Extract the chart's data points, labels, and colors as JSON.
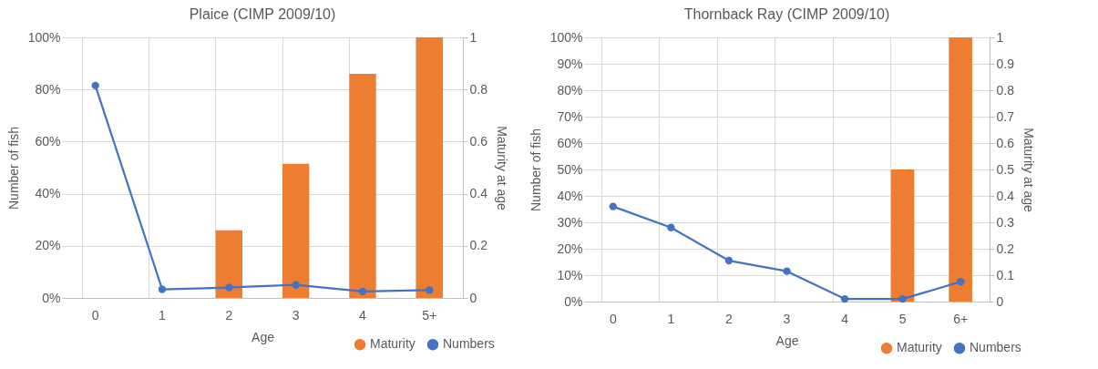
{
  "chart_data": [
    {
      "type": "bar",
      "title": "Plaice (CIMP 2009/10)",
      "xlabel": "Age",
      "ylabel": "Number of fish",
      "y2label": "Maturity at age",
      "categories": [
        "0",
        "1",
        "2",
        "3",
        "4",
        "5+"
      ],
      "ylim": [
        0,
        100
      ],
      "yticks": [
        {
          "value": 0,
          "label": "0%"
        },
        {
          "value": 20,
          "label": "20%"
        },
        {
          "value": 40,
          "label": "40%"
        },
        {
          "value": 60,
          "label": "60%"
        },
        {
          "value": 80,
          "label": "80%"
        },
        {
          "value": 100,
          "label": "100%"
        }
      ],
      "y2lim": [
        0,
        1
      ],
      "y2ticks": [
        0,
        0.2,
        0.4,
        0.6,
        0.8,
        1
      ],
      "grid": true,
      "legend": "bottom right",
      "marker": "circle",
      "series": [
        {
          "name": "Maturity",
          "axis": "y2",
          "color": "#ed7d31",
          "values": [
            0,
            0,
            0.26,
            0.515,
            0.86,
            1
          ]
        },
        {
          "name": "Numbers",
          "type": "line",
          "color": "#4472c4",
          "values": [
            81.5,
            3.3,
            4,
            5,
            2.5,
            3
          ]
        }
      ]
    },
    {
      "type": "bar",
      "title": "Thornback Ray (CIMP 2009/10)",
      "xlabel": "Age",
      "ylabel": "Number of fish",
      "y2label": "Maturity at age",
      "categories": [
        "0",
        "1",
        "2",
        "3",
        "4",
        "5",
        "6+"
      ],
      "ylim": [
        0,
        100
      ],
      "yticks": [
        {
          "value": 0,
          "label": "0%"
        },
        {
          "value": 10,
          "label": "10%"
        },
        {
          "value": 20,
          "label": "20%"
        },
        {
          "value": 30,
          "label": "30%"
        },
        {
          "value": 40,
          "label": "40%"
        },
        {
          "value": 50,
          "label": "50%"
        },
        {
          "value": 60,
          "label": "60%"
        },
        {
          "value": 70,
          "label": "70%"
        },
        {
          "value": 80,
          "label": "80%"
        },
        {
          "value": 90,
          "label": "90%"
        },
        {
          "value": 100,
          "label": "100%"
        }
      ],
      "y2lim": [
        0,
        1
      ],
      "y2ticks": [
        0,
        0.1,
        0.2,
        0.3,
        0.4,
        0.5,
        0.6,
        0.7,
        0.8,
        0.9,
        1
      ],
      "grid": true,
      "legend": "bottom right",
      "marker": "circle",
      "series": [
        {
          "name": "Maturity",
          "axis": "y2",
          "color": "#ed7d31",
          "values": [
            0,
            0,
            0,
            0,
            0,
            0.5,
            1
          ]
        },
        {
          "name": "Numbers",
          "type": "line",
          "color": "#4472c4",
          "values": [
            36,
            28,
            15.5,
            11.5,
            1,
            1,
            7.5
          ]
        }
      ]
    }
  ]
}
